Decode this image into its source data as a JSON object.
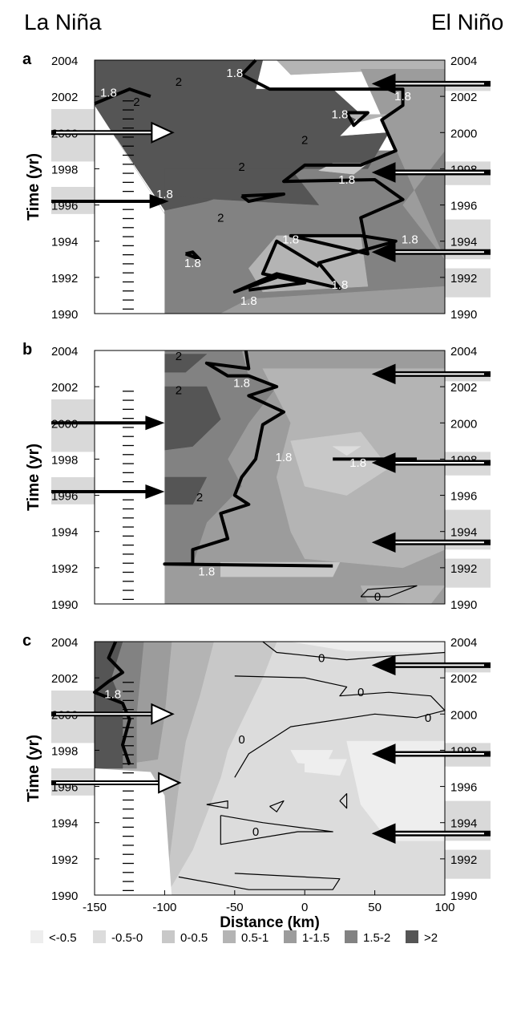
{
  "header": {
    "left_label": "La Niña",
    "right_label": "El Niño"
  },
  "chart_data": [
    {
      "type": "heatmap",
      "panel": "a",
      "xlabel": "",
      "ylabel": "Time (yr)",
      "xlim": [
        -150,
        100
      ],
      "ylim": [
        1990,
        2004
      ],
      "left_ticks": [
        "1990",
        "1992",
        "1994",
        "1996",
        "1998",
        "2000",
        "2002",
        "2004"
      ],
      "right_ticks": [
        "1990",
        "1992",
        "1994",
        "1996",
        "1998",
        "2000",
        "2002",
        "2004"
      ],
      "contour_labels": [
        {
          "text": "1.8",
          "x": -140,
          "y": 2002.2,
          "color": "white"
        },
        {
          "text": "2",
          "x": -120,
          "y": 2001.7,
          "color": "black"
        },
        {
          "text": "2",
          "x": -90,
          "y": 2002.8,
          "color": "black"
        },
        {
          "text": "1.8",
          "x": -50,
          "y": 2003.3,
          "color": "white"
        },
        {
          "text": "1.8",
          "x": 70,
          "y": 2002.0,
          "color": "white"
        },
        {
          "text": "1.8",
          "x": 25,
          "y": 2001.0,
          "color": "white"
        },
        {
          "text": "2",
          "x": 0,
          "y": 1999.6,
          "color": "black"
        },
        {
          "text": "2",
          "x": -45,
          "y": 1998.1,
          "color": "black"
        },
        {
          "text": "1.8",
          "x": 30,
          "y": 1997.4,
          "color": "white"
        },
        {
          "text": "1.8",
          "x": -100,
          "y": 1996.6,
          "color": "white"
        },
        {
          "text": "2",
          "x": -60,
          "y": 1995.3,
          "color": "black"
        },
        {
          "text": "1.8",
          "x": -10,
          "y": 1994.1,
          "color": "white"
        },
        {
          "text": "1.8",
          "x": 75,
          "y": 1994.1,
          "color": "white"
        },
        {
          "text": "1.8",
          "x": -80,
          "y": 1992.8,
          "color": "white"
        },
        {
          "text": "1.8",
          "x": 25,
          "y": 1991.6,
          "color": "white"
        },
        {
          "text": "1.8",
          "x": -40,
          "y": 1990.7,
          "color": "white"
        }
      ],
      "arrows_left": [
        {
          "year": 2000.0,
          "tip_x": -100,
          "style": "white"
        },
        {
          "year": 1996.2,
          "tip_x": -97,
          "style": "black"
        }
      ],
      "arrows_right": [
        {
          "year": 2002.7,
          "style": "white"
        },
        {
          "year": 1997.8,
          "style": "white"
        },
        {
          "year": 1993.4,
          "style": "white"
        }
      ]
    },
    {
      "type": "heatmap",
      "panel": "b",
      "xlabel": "",
      "ylabel": "Time (yr)",
      "xlim": [
        -150,
        100
      ],
      "ylim": [
        1990,
        2004
      ],
      "left_ticks": [
        "1990",
        "1992",
        "1994",
        "1996",
        "1998",
        "2000",
        "2002",
        "2004"
      ],
      "right_ticks": [
        "1990",
        "1992",
        "1994",
        "1996",
        "1998",
        "2000",
        "2002",
        "2004"
      ],
      "contour_labels": [
        {
          "text": "2",
          "x": -90,
          "y": 2003.7,
          "color": "black"
        },
        {
          "text": "1.8",
          "x": -45,
          "y": 2002.2,
          "color": "white"
        },
        {
          "text": "2",
          "x": -90,
          "y": 2001.8,
          "color": "black"
        },
        {
          "text": "1.8",
          "x": -15,
          "y": 1998.1,
          "color": "white"
        },
        {
          "text": "1.8",
          "x": 38,
          "y": 1997.8,
          "color": "white"
        },
        {
          "text": "2",
          "x": -75,
          "y": 1995.9,
          "color": "black"
        },
        {
          "text": "1.8",
          "x": -70,
          "y": 1991.8,
          "color": "white"
        },
        {
          "text": "0",
          "x": 52,
          "y": 1990.4,
          "color": "black"
        }
      ],
      "arrows_left": [
        {
          "year": 2000.0,
          "tip_x": -100,
          "style": "black"
        },
        {
          "year": 1996.2,
          "tip_x": -100,
          "style": "black"
        }
      ],
      "arrows_right": [
        {
          "year": 2002.7,
          "style": "white"
        },
        {
          "year": 1997.8,
          "style": "white"
        },
        {
          "year": 1993.4,
          "style": "white"
        }
      ]
    },
    {
      "type": "heatmap",
      "panel": "c",
      "xlabel": "Distance (km)",
      "ylabel": "Time (yr)",
      "xlim": [
        -150,
        100
      ],
      "ylim": [
        1990,
        2004
      ],
      "x_ticks": [
        "-150",
        "-100",
        "-50",
        "0",
        "50",
        "100"
      ],
      "left_ticks": [
        "1990",
        "1992",
        "1994",
        "1996",
        "1998",
        "2000",
        "2002",
        "2004"
      ],
      "right_ticks": [
        "1990",
        "1992",
        "1994",
        "1996",
        "1998",
        "2000",
        "2002",
        "2004"
      ],
      "contour_labels": [
        {
          "text": "1.8",
          "x": -137,
          "y": 2001.1,
          "color": "white"
        },
        {
          "text": "0",
          "x": 12,
          "y": 2003.1,
          "color": "black"
        },
        {
          "text": "0",
          "x": 40,
          "y": 2001.2,
          "color": "black"
        },
        {
          "text": "0",
          "x": 88,
          "y": 1999.8,
          "color": "black"
        },
        {
          "text": "0",
          "x": -45,
          "y": 1998.6,
          "color": "black"
        },
        {
          "text": "0",
          "x": -35,
          "y": 1993.5,
          "color": "black"
        }
      ],
      "arrows_left": [
        {
          "year": 2000.0,
          "tip_x": -100,
          "style": "white"
        },
        {
          "year": 1996.2,
          "tip_x": -95,
          "style": "white"
        }
      ],
      "arrows_right": [
        {
          "year": 2002.7,
          "style": "white"
        },
        {
          "year": 1997.8,
          "style": "white"
        },
        {
          "year": 1993.4,
          "style": "white"
        }
      ]
    }
  ],
  "legend": {
    "entries": [
      {
        "label": "<-0.5",
        "color": "#eeeeee"
      },
      {
        "label": "-0.5-0",
        "color": "#dcdcdc"
      },
      {
        "label": "0-0.5",
        "color": "#c8c8c8"
      },
      {
        "label": "0.5-1",
        "color": "#b4b4b4"
      },
      {
        "label": "1-1.5",
        "color": "#9c9c9c"
      },
      {
        "label": "1.5-2",
        "color": "#828282"
      },
      {
        "label": ">2",
        "color": "#555555"
      }
    ]
  },
  "colors": {
    "light_band": "#d9d9d9",
    "dark_band": "#a3a3a3"
  }
}
